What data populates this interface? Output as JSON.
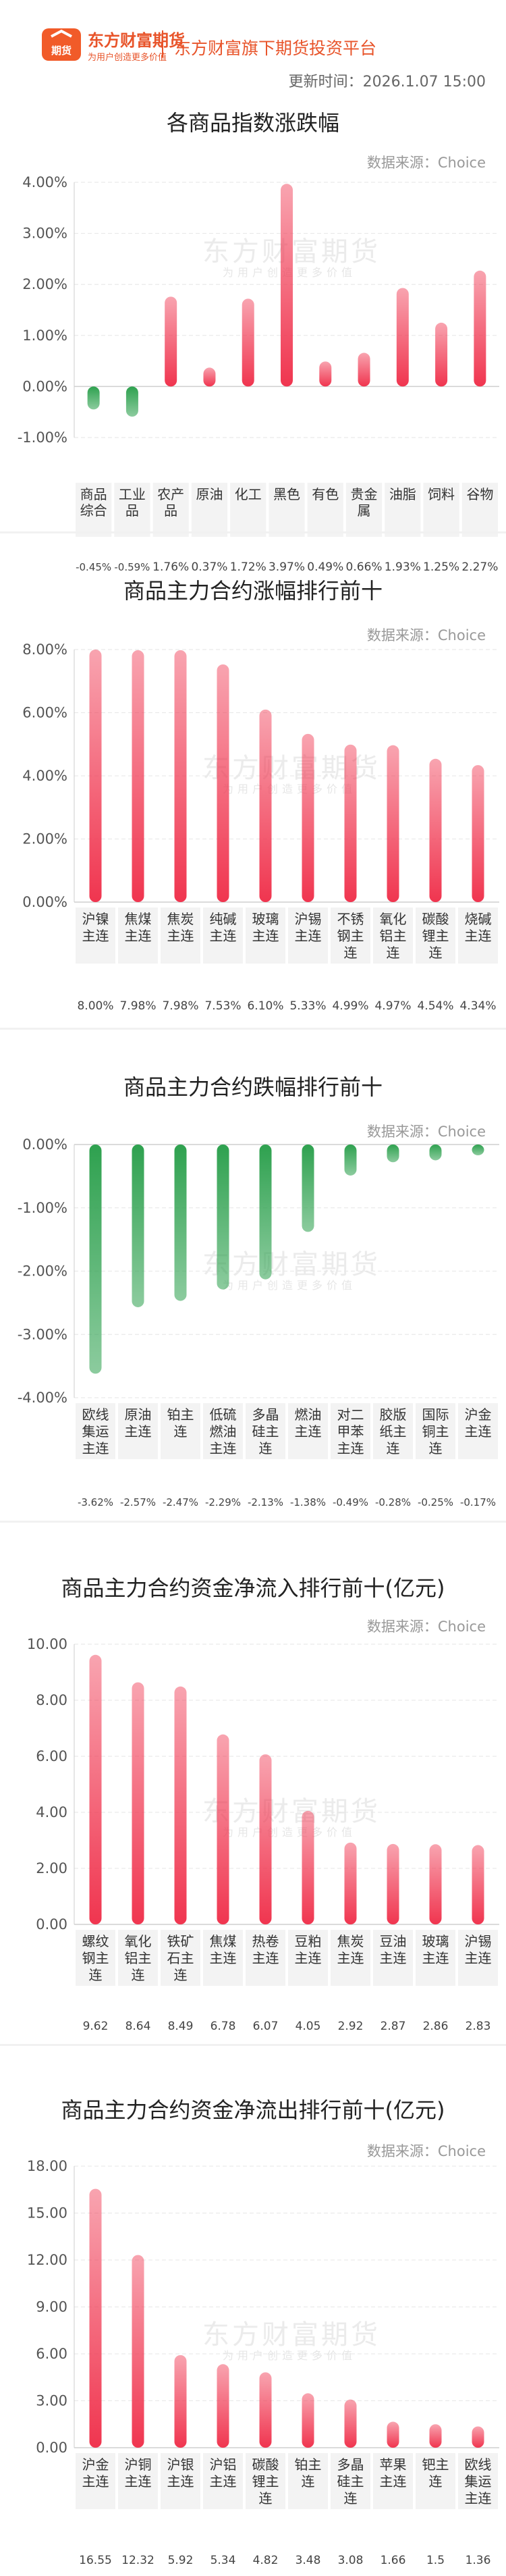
{
  "header": {
    "logo_main": "东方财富期货",
    "logo_badge": "期货",
    "logo_slogan": "为用户创造更多价值",
    "platform": "东方财富旗下期货投资平台",
    "update_time": "更新时间：2026.1.07 15:00"
  },
  "watermark": {
    "main": "东方财富期货",
    "sub": "为用户创造更多价值"
  },
  "chart_data": [
    {
      "type": "bar",
      "title": "各商品指数涨跌幅",
      "source": "数据来源：Choice",
      "categories": [
        "商品综合",
        "工业品",
        "农产品",
        "原油",
        "化工",
        "黑色",
        "有色",
        "贵金属",
        "油脂",
        "饲料",
        "谷物"
      ],
      "values": [
        -0.45,
        -0.59,
        1.76,
        0.37,
        1.72,
        3.97,
        0.49,
        0.66,
        1.93,
        1.25,
        2.27
      ],
      "value_labels": [
        "-0.45%",
        "-0.59%",
        "1.76%",
        "0.37%",
        "1.72%",
        "3.97%",
        "0.49%",
        "0.66%",
        "1.93%",
        "1.25%",
        "2.27%"
      ],
      "ylim": [
        -1.0,
        4.0
      ],
      "yticks": [
        "4.00%",
        "3.00%",
        "2.00%",
        "1.00%",
        "0.00%",
        "-1.00%"
      ],
      "colors": {
        "up": "#f0354f",
        "down": "#2ea14f"
      }
    },
    {
      "type": "bar",
      "title": "商品主力合约涨幅排行前十",
      "source": "数据来源：Choice",
      "categories": [
        "沪镍主连",
        "焦煤主连",
        "焦炭主连",
        "纯碱主连",
        "玻璃主连",
        "沪锡主连",
        "不锈钢主连",
        "氧化铝主连",
        "碳酸锂主连",
        "烧碱主连"
      ],
      "values": [
        8.0,
        7.98,
        7.98,
        7.53,
        6.1,
        5.33,
        4.99,
        4.97,
        4.54,
        4.34
      ],
      "value_labels": [
        "8.00%",
        "7.98%",
        "7.98%",
        "7.53%",
        "6.10%",
        "5.33%",
        "4.99%",
        "4.97%",
        "4.54%",
        "4.34%"
      ],
      "ylim": [
        0,
        8.0
      ],
      "yticks": [
        "8.00%",
        "6.00%",
        "4.00%",
        "2.00%",
        "0.00%"
      ],
      "colors": {
        "up": "#f0354f",
        "down": "#2ea14f"
      }
    },
    {
      "type": "bar",
      "title": "商品主力合约跌幅排行前十",
      "source": "数据来源：Choice",
      "categories": [
        "欧线集运主连",
        "原油主连",
        "铂主连",
        "低硫燃油主连",
        "多晶硅主连",
        "燃油主连",
        "对二甲苯主连",
        "胶版纸主连",
        "国际铜主连",
        "沪金主连"
      ],
      "values": [
        -3.62,
        -2.57,
        -2.47,
        -2.29,
        -2.13,
        -1.38,
        -0.49,
        -0.28,
        -0.25,
        -0.17
      ],
      "value_labels": [
        "-3.62%",
        "-2.57%",
        "-2.47%",
        "-2.29%",
        "-2.13%",
        "-1.38%",
        "-0.49%",
        "-0.28%",
        "-0.25%",
        "-0.17%"
      ],
      "ylim": [
        -4.0,
        0
      ],
      "yticks": [
        "0.00%",
        "-1.00%",
        "-2.00%",
        "-3.00%",
        "-4.00%"
      ],
      "colors": {
        "up": "#f0354f",
        "down": "#2ea14f"
      }
    },
    {
      "type": "bar",
      "title": "商品主力合约资金净流入排行前十(亿元)",
      "source": "数据来源：Choice",
      "categories": [
        "螺纹钢主连",
        "氧化铝主连",
        "铁矿石主连",
        "焦煤主连",
        "热卷主连",
        "豆粕主连",
        "焦炭主连",
        "豆油主连",
        "玻璃主连",
        "沪锡主连"
      ],
      "values": [
        9.62,
        8.64,
        8.49,
        6.78,
        6.07,
        4.05,
        2.92,
        2.87,
        2.86,
        2.83
      ],
      "value_labels": [
        "9.62",
        "8.64",
        "8.49",
        "6.78",
        "6.07",
        "4.05",
        "2.92",
        "2.87",
        "2.86",
        "2.83"
      ],
      "ylim": [
        0,
        10.0
      ],
      "yticks": [
        "10.00",
        "8.00",
        "6.00",
        "4.00",
        "2.00",
        "0.00"
      ],
      "colors": {
        "up": "#f0354f",
        "down": "#2ea14f"
      }
    },
    {
      "type": "bar",
      "title": "商品主力合约资金净流出排行前十(亿元)",
      "source": "数据来源：Choice",
      "categories": [
        "沪金主连",
        "沪铜主连",
        "沪银主连",
        "沪铝主连",
        "碳酸锂主连",
        "铂主连",
        "多晶硅主连",
        "苹果主连",
        "钯主连",
        "欧线集运主连"
      ],
      "values": [
        16.55,
        12.32,
        5.92,
        5.34,
        4.82,
        3.48,
        3.08,
        1.66,
        1.5,
        1.36
      ],
      "value_labels": [
        "16.55",
        "12.32",
        "5.92",
        "5.34",
        "4.82",
        "3.48",
        "3.08",
        "1.66",
        "1.5",
        "1.36"
      ],
      "ylim": [
        0,
        18.0
      ],
      "yticks": [
        "18.00",
        "15.00",
        "12.00",
        "9.00",
        "6.00",
        "3.00",
        "0.00"
      ],
      "colors": {
        "up": "#f0354f",
        "down": "#2ea14f"
      }
    }
  ]
}
